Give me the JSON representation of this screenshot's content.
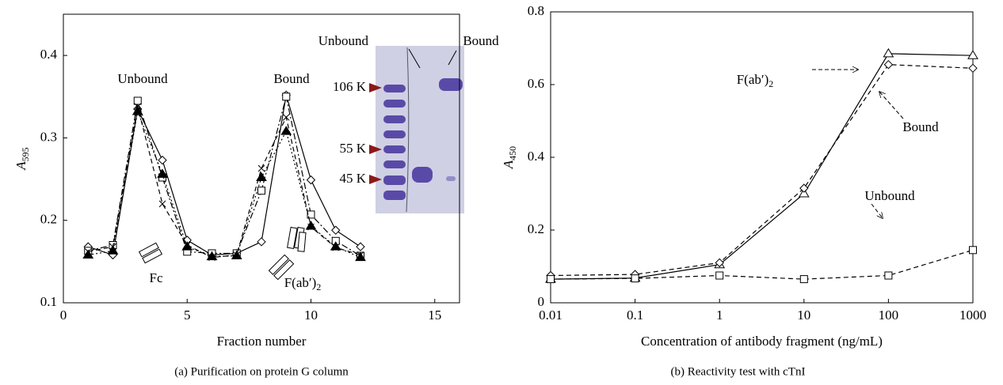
{
  "chart_data": [
    {
      "type": "line",
      "x_label": "Fraction number",
      "y_label": "A",
      "y_label_subscript": "595",
      "caption": "(a)  Purification on protein G column",
      "x": [
        1,
        2,
        3,
        4,
        5,
        6,
        7,
        8,
        9,
        10,
        11,
        12
      ],
      "xlim": [
        0,
        16
      ],
      "xticks": [
        0,
        5,
        10,
        15
      ],
      "ylim": [
        0.1,
        0.45
      ],
      "yticks": [
        0.1,
        0.2,
        0.3,
        0.4
      ],
      "log_x": false,
      "series": [
        {
          "color": "#000",
          "marker": "diamond",
          "dash": "solid",
          "values": [
            0.168,
            0.158,
            0.335,
            0.273,
            0.176,
            0.158,
            0.16,
            0.174,
            0.352,
            0.249,
            0.188,
            0.168
          ]
        },
        {
          "color": "#000",
          "marker": "square",
          "dash": "dashdot",
          "values": [
            0.163,
            0.17,
            0.345,
            0.252,
            0.162,
            0.16,
            0.16,
            0.236,
            0.35,
            0.207,
            0.175,
            0.157
          ]
        },
        {
          "color": "#000",
          "marker": "triangle-filled",
          "dash": "dotted",
          "values": [
            0.158,
            0.163,
            0.332,
            0.256,
            0.168,
            0.156,
            0.157,
            0.252,
            0.308,
            0.193,
            0.168,
            0.155
          ]
        },
        {
          "color": "#000",
          "marker": "x",
          "dash": "dashed",
          "values": [
            0.162,
            0.168,
            0.338,
            0.22,
            0.17,
            0.155,
            0.158,
            0.263,
            0.325,
            0.192,
            0.167,
            0.158
          ]
        }
      ],
      "annotations": [
        {
          "text": "Unbound"
        },
        {
          "text": "Bound"
        },
        {
          "text": "Fc"
        },
        {
          "text": "F(ab′)",
          "subscript": "2"
        }
      ],
      "inset_labels": [
        "Unbound",
        "Bound",
        "106 K",
        "55 K",
        "45 K"
      ]
    },
    {
      "type": "line",
      "x_label": "Concentration of antibody fragment (ng/mL)",
      "y_label": "A",
      "y_label_subscript": "450",
      "caption": "(b)  Reactivity test with cTnI",
      "x": [
        0.01,
        0.1,
        1,
        10,
        100,
        1000
      ],
      "xlim": [
        0.01,
        1000
      ],
      "xticks": [
        0.01,
        0.1,
        1,
        10,
        100,
        1000
      ],
      "ylim": [
        0,
        0.8
      ],
      "yticks": [
        0,
        0.2,
        0.4,
        0.6,
        0.8
      ],
      "log_x": true,
      "series": [
        {
          "color": "#000",
          "marker": "triangle",
          "dash": "solid",
          "values": [
            0.065,
            0.068,
            0.105,
            0.3,
            0.685,
            0.68
          ]
        },
        {
          "color": "#000",
          "marker": "diamond",
          "dash": "dashed",
          "values": [
            0.075,
            0.078,
            0.11,
            0.315,
            0.655,
            0.645
          ]
        },
        {
          "color": "#000",
          "marker": "square",
          "dash": "dashed",
          "values": [
            0.065,
            0.067,
            0.075,
            0.065,
            0.075,
            0.145
          ]
        }
      ],
      "annotations": [
        {
          "text": "F(ab′)",
          "subscript": "2"
        },
        {
          "text": "Bound"
        },
        {
          "text": "Unbound"
        }
      ]
    }
  ]
}
